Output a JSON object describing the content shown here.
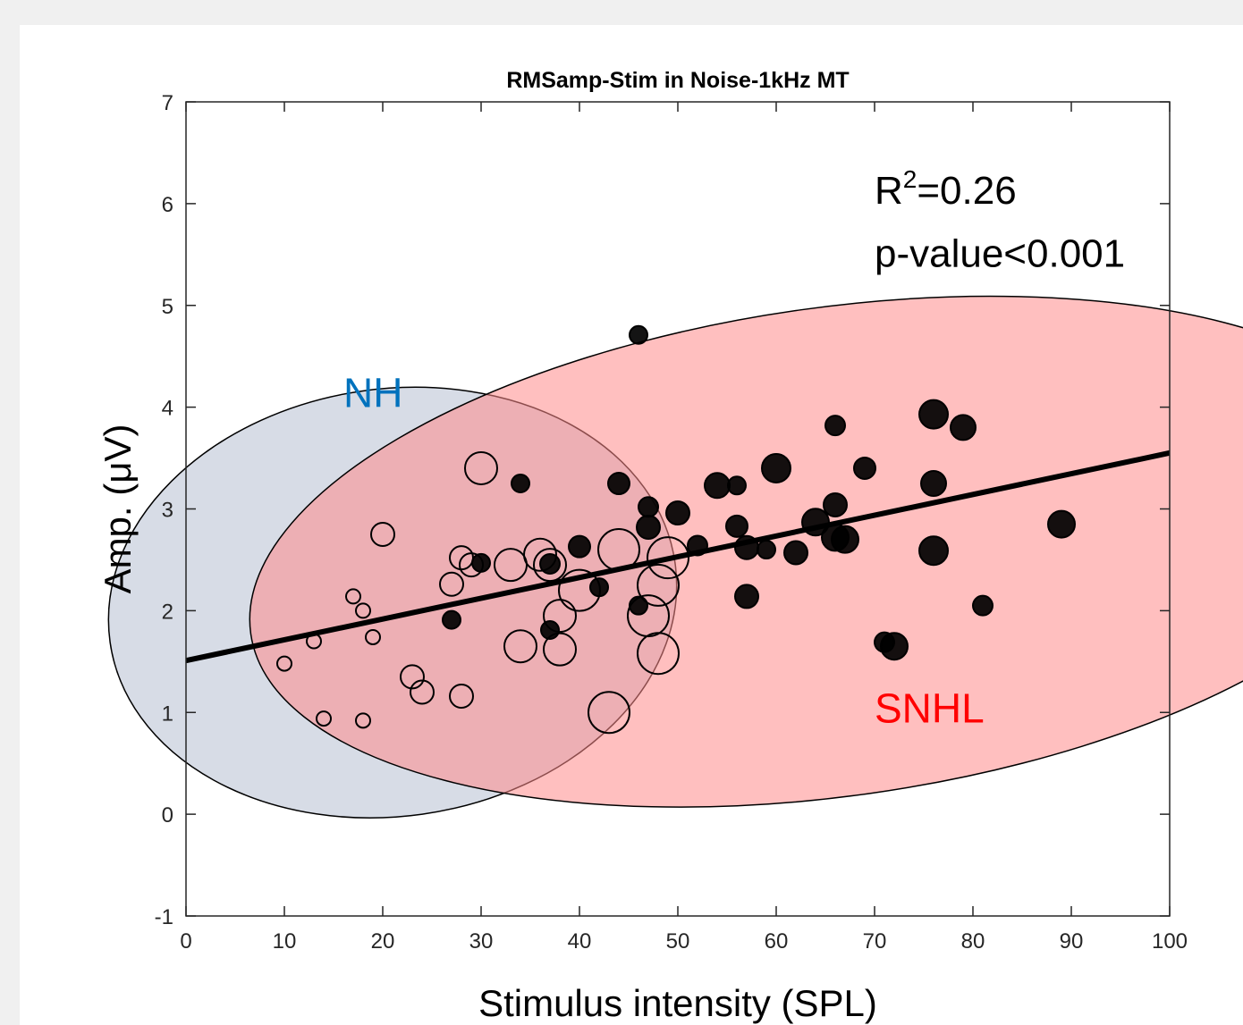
{
  "chart_data": {
    "type": "scatter",
    "title": "RMSamp-Stim in Noise-1kHz MT",
    "xlabel": "Stimulus intensity (SPL)",
    "ylabel": "Amp. (μV)",
    "xlim": [
      0,
      100
    ],
    "ylim": [
      -1,
      7
    ],
    "xticks": [
      0,
      10,
      20,
      30,
      40,
      50,
      60,
      70,
      80,
      90,
      100
    ],
    "yticks": [
      -1,
      0,
      1,
      2,
      3,
      4,
      5,
      6,
      7
    ],
    "grid": false,
    "stats": {
      "r2_prefix": "R",
      "r2_exp": "2",
      "r2_value": "=0.26",
      "p_text": "p-value<0.001"
    },
    "regression": {
      "x": [
        0,
        100
      ],
      "y": [
        1.51,
        3.55
      ],
      "color": "#000000"
    },
    "groups": [
      {
        "label": "NH",
        "label_color": "#0072bd",
        "label_pos": [
          16,
          4.0
        ],
        "ellipse": {
          "cx": 21,
          "cy": 2.08,
          "rx": 29,
          "ry": 2.1,
          "angle_deg": 8,
          "fill": "#bcc5d6",
          "opacity": 0.6
        }
      },
      {
        "label": "SNHL",
        "label_color": "#ff0000",
        "label_pos": [
          70,
          0.9
        ],
        "ellipse": {
          "cx": 66,
          "cy": 2.58,
          "rx": 60,
          "ry": 2.4,
          "angle_deg": 8,
          "fill": "#ff8a8a",
          "opacity": 0.55
        }
      }
    ],
    "series": [
      {
        "name": "NH",
        "marker": "open-circle",
        "color": "#000000",
        "points": [
          [
            10,
            1.48,
            8
          ],
          [
            13,
            1.7,
            8
          ],
          [
            14,
            0.94,
            8
          ],
          [
            17,
            2.14,
            8
          ],
          [
            18,
            2.0,
            8
          ],
          [
            18,
            0.92,
            8
          ],
          [
            19,
            1.74,
            8
          ],
          [
            20,
            2.75,
            13
          ],
          [
            23,
            1.35,
            13
          ],
          [
            24,
            1.2,
            13
          ],
          [
            27,
            2.26,
            13
          ],
          [
            28,
            2.52,
            13
          ],
          [
            28,
            1.16,
            13
          ],
          [
            29,
            2.45,
            13
          ],
          [
            30,
            3.4,
            18
          ],
          [
            33,
            2.45,
            18
          ],
          [
            34,
            1.65,
            18
          ],
          [
            36,
            2.55,
            18
          ],
          [
            37,
            2.45,
            18
          ],
          [
            38,
            1.95,
            18
          ],
          [
            38,
            1.62,
            18
          ],
          [
            40,
            2.2,
            23
          ],
          [
            44,
            2.6,
            23
          ],
          [
            43,
            1.0,
            23
          ],
          [
            47,
            1.95,
            23
          ],
          [
            48,
            2.25,
            23
          ],
          [
            49,
            2.52,
            23
          ],
          [
            48,
            1.58,
            23
          ]
        ]
      },
      {
        "name": "SNHL",
        "marker": "filled-circle",
        "color": "#000000",
        "points": [
          [
            27,
            1.91,
            10
          ],
          [
            30,
            2.47,
            10
          ],
          [
            34,
            3.25,
            10
          ],
          [
            37,
            1.81,
            10
          ],
          [
            37,
            2.46,
            11
          ],
          [
            40,
            2.63,
            12
          ],
          [
            42,
            2.23,
            10
          ],
          [
            44,
            3.25,
            12
          ],
          [
            46,
            2.05,
            10
          ],
          [
            46,
            4.71,
            10
          ],
          [
            47,
            3.02,
            11
          ],
          [
            47,
            2.82,
            13
          ],
          [
            50,
            2.96,
            13
          ],
          [
            52,
            2.64,
            11
          ],
          [
            54,
            3.23,
            14
          ],
          [
            56,
            3.23,
            10
          ],
          [
            56,
            2.83,
            12
          ],
          [
            57,
            2.62,
            13
          ],
          [
            57,
            2.14,
            13
          ],
          [
            59,
            2.6,
            10
          ],
          [
            60,
            3.4,
            16
          ],
          [
            62,
            2.57,
            13
          ],
          [
            64,
            2.87,
            15
          ],
          [
            66,
            3.82,
            11
          ],
          [
            66,
            3.04,
            13
          ],
          [
            66,
            2.72,
            15
          ],
          [
            67,
            2.7,
            15
          ],
          [
            69,
            3.4,
            12
          ],
          [
            71,
            1.69,
            11
          ],
          [
            72,
            1.65,
            15
          ],
          [
            76,
            3.93,
            16
          ],
          [
            76,
            3.25,
            14
          ],
          [
            76,
            2.59,
            16
          ],
          [
            79,
            3.8,
            14
          ],
          [
            81,
            2.05,
            11
          ],
          [
            89,
            2.85,
            15
          ]
        ]
      }
    ]
  }
}
